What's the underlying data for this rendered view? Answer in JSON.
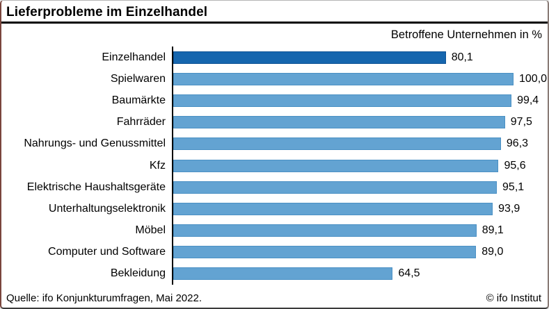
{
  "title": "Lieferprobleme im Einzelhandel",
  "subtitle": "Betroffene Unternehmen in %",
  "footer": {
    "source": "Quelle: ifo Konjunkturumfragen, Mai 2022.",
    "copyright": "© ifo Institut"
  },
  "colors": {
    "bar": "#63a3d2",
    "bar_border": "#4a90c4",
    "highlight_bar": "#1666ae",
    "highlight_bar_border": "#0d5294",
    "axis": "#000000",
    "title_rule": "#000000",
    "text": "#000000",
    "background": "#ffffff"
  },
  "chart_data": {
    "type": "bar",
    "orientation": "horizontal",
    "title": "Lieferprobleme im Einzelhandel",
    "xlabel": "Betroffene Unternehmen in %",
    "xlim": [
      0,
      100
    ],
    "grid": false,
    "legend": null,
    "highlighted_index": 0,
    "categories": [
      "Einzelhandel",
      "Spielwaren",
      "Baumärkte",
      "Fahrräder",
      "Nahrungs- und Genussmittel",
      "Kfz",
      "Elektrische Haushaltsgeräte",
      "Unterhaltungselektronik",
      "Möbel",
      "Computer und Software",
      "Bekleidung"
    ],
    "values": [
      80.1,
      100.0,
      99.4,
      97.5,
      96.3,
      95.6,
      95.1,
      93.9,
      89.1,
      89.0,
      64.5
    ],
    "value_labels": [
      "80,1",
      "100,0",
      "99,4",
      "97,5",
      "96,3",
      "95,6",
      "95,1",
      "93,9",
      "89,1",
      "89,0",
      "64,5"
    ]
  }
}
